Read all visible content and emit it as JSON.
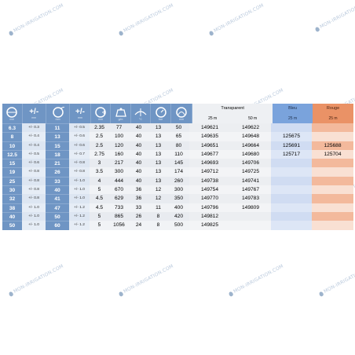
{
  "watermark": "MON-IRRIGATION.COM",
  "colors": {
    "accent": "#6f95c4",
    "bleu_header": "#7aa3dc",
    "bleu_cell": "#d4e0f4",
    "rouge_header": "#ea9266",
    "rouge_cell": "#f7d8c6",
    "rouge_cell_alt": "#f3b595"
  },
  "header": {
    "icons": [
      {
        "name": "inner-diameter-icon",
        "sub": "mm"
      },
      {
        "name": "tolerance-label",
        "text": "+/-",
        "sub": "mm"
      },
      {
        "name": "outer-diameter-icon",
        "sub": "mm"
      },
      {
        "name": "tolerance-label",
        "text": "+/-",
        "sub": "mm"
      },
      {
        "name": "wall-thickness-icon",
        "sub": "mm"
      },
      {
        "name": "weight-icon",
        "sub": "g/m"
      },
      {
        "name": "temperature-icon",
        "sub": "°C"
      },
      {
        "name": "pressure-gauge-icon",
        "sub": "bar"
      },
      {
        "name": "bend-radius-icon",
        "sub": "mm"
      }
    ],
    "groups": {
      "transparent": {
        "title": "Transparent",
        "sub": [
          "25 m",
          "50 m"
        ]
      },
      "bleu": {
        "title": "Bleu",
        "sub": "25 m"
      },
      "rouge": {
        "title": "Rouge",
        "sub": "25 m"
      }
    }
  },
  "rows": [
    [
      "6.3",
      "+/- 0.3",
      "11",
      "+/- 0.5",
      "2.35",
      "77",
      "40",
      "13",
      "50",
      "149621",
      "149622",
      "",
      ""
    ],
    [
      "8",
      "+/- 0.4",
      "13",
      "+/- 0.6",
      "2.5",
      "100",
      "40",
      "13",
      "65",
      "149635",
      "149648",
      "125675",
      ""
    ],
    [
      "10",
      "+/- 0.4",
      "15",
      "+/- 0.6",
      "2.5",
      "120",
      "40",
      "13",
      "80",
      "149651",
      "149664",
      "125691",
      "125688"
    ],
    [
      "12.5",
      "+/- 0.5",
      "18",
      "+/- 0.7",
      "2.75",
      "160",
      "40",
      "13",
      "110",
      "149677",
      "149680",
      "125717",
      "125704"
    ],
    [
      "15",
      "+/- 0.6",
      "21",
      "+/- 0.8",
      "3",
      "217",
      "40",
      "13",
      "145",
      "149693",
      "149706",
      "",
      ""
    ],
    [
      "19",
      "+/- 0.8",
      "26",
      "+/- 0.8",
      "3.5",
      "300",
      "40",
      "13",
      "174",
      "149712",
      "149725",
      "",
      ""
    ],
    [
      "25",
      "+/- 0.8",
      "33",
      "+/- 1.0",
      "4",
      "444",
      "40",
      "13",
      "260",
      "149738",
      "149741",
      "",
      ""
    ],
    [
      "30",
      "+/- 0.8",
      "40",
      "+/- 1.0",
      "5",
      "670",
      "36",
      "12",
      "300",
      "149754",
      "149767",
      "",
      ""
    ],
    [
      "32",
      "+/- 0.8",
      "41",
      "+/- 1.0",
      "4.5",
      "629",
      "36",
      "12",
      "350",
      "149770",
      "149783",
      "",
      ""
    ],
    [
      "38",
      "+/- 1.0",
      "47",
      "+/- 1.2",
      "4.5",
      "733",
      "33",
      "11",
      "400",
      "149796",
      "149809",
      "",
      ""
    ],
    [
      "40",
      "+/- 1.0",
      "50",
      "+/- 1.2",
      "5",
      "865",
      "26",
      "8",
      "420",
      "149812",
      "",
      "",
      ""
    ],
    [
      "50",
      "+/- 1.0",
      "60",
      "+/- 1.2",
      "5",
      "1056",
      "24",
      "8",
      "500",
      "149825",
      "",
      "",
      ""
    ]
  ]
}
